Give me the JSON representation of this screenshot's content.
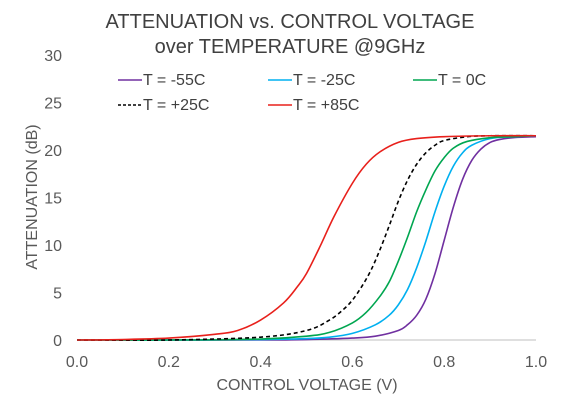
{
  "chart_data": {
    "type": "line",
    "title_line1": "ATTENUATION vs. CONTROL VOLTAGE",
    "title_line2": "over TEMPERATURE @9GHz",
    "xlabel": "CONTROL VOLTAGE (V)",
    "ylabel": "ATTENUATION (dB)",
    "xlim": [
      0,
      1.0
    ],
    "ylim": [
      0,
      30
    ],
    "x_ticks": [
      "0.0",
      "0.2",
      "0.4",
      "0.6",
      "0.8",
      "1.0"
    ],
    "y_ticks": [
      "0",
      "5",
      "10",
      "15",
      "20",
      "25",
      "30"
    ],
    "grid": false,
    "legend_position": "top",
    "series": [
      {
        "name": "T = -55C",
        "color": "#7030A0",
        "dash": "solid",
        "x": [
          0.0,
          0.2,
          0.4,
          0.5,
          0.6,
          0.65,
          0.7,
          0.72,
          0.74,
          0.76,
          0.78,
          0.8,
          0.82,
          0.84,
          0.86,
          0.88,
          0.9,
          0.92,
          0.95,
          1.0
        ],
        "y": [
          0.0,
          0.0,
          0.0,
          0.05,
          0.2,
          0.4,
          1.0,
          1.6,
          2.6,
          4.3,
          7.0,
          10.5,
          14.0,
          16.9,
          18.9,
          20.1,
          20.8,
          21.1,
          21.3,
          21.4
        ]
      },
      {
        "name": "T = -25C",
        "color": "#00B0F0",
        "dash": "solid",
        "x": [
          0.0,
          0.2,
          0.4,
          0.5,
          0.55,
          0.6,
          0.65,
          0.68,
          0.7,
          0.72,
          0.74,
          0.76,
          0.78,
          0.8,
          0.82,
          0.84,
          0.86,
          0.9,
          0.95,
          1.0
        ],
        "y": [
          0.0,
          0.0,
          0.05,
          0.15,
          0.3,
          0.7,
          1.6,
          2.6,
          3.7,
          5.3,
          7.6,
          10.4,
          13.5,
          16.2,
          18.3,
          19.7,
          20.5,
          21.2,
          21.4,
          21.5
        ]
      },
      {
        "name": "T = 0C",
        "color": "#00A650",
        "dash": "solid",
        "x": [
          0.0,
          0.2,
          0.4,
          0.5,
          0.55,
          0.6,
          0.63,
          0.66,
          0.68,
          0.7,
          0.72,
          0.74,
          0.76,
          0.78,
          0.8,
          0.82,
          0.85,
          0.9,
          0.95,
          1.0
        ],
        "y": [
          0.0,
          0.0,
          0.1,
          0.4,
          0.8,
          1.8,
          2.9,
          4.6,
          6.1,
          8.3,
          10.8,
          13.5,
          15.8,
          17.8,
          19.2,
          20.2,
          20.9,
          21.3,
          21.4,
          21.5
        ]
      },
      {
        "name": "T = +25C",
        "color": "#000000",
        "dash": "dashed",
        "x": [
          0.0,
          0.2,
          0.4,
          0.5,
          0.55,
          0.58,
          0.6,
          0.62,
          0.64,
          0.66,
          0.68,
          0.7,
          0.72,
          0.74,
          0.76,
          0.78,
          0.8,
          0.85,
          0.9,
          1.0
        ],
        "y": [
          0.0,
          0.0,
          0.3,
          1.0,
          2.1,
          3.2,
          4.2,
          5.6,
          7.3,
          9.5,
          12.0,
          14.6,
          16.8,
          18.5,
          19.7,
          20.5,
          21.0,
          21.4,
          21.5,
          21.5
        ]
      },
      {
        "name": "T = +85C",
        "color": "#E8201B",
        "dash": "solid",
        "x": [
          0.0,
          0.1,
          0.2,
          0.3,
          0.35,
          0.4,
          0.45,
          0.48,
          0.5,
          0.53,
          0.56,
          0.6,
          0.63,
          0.66,
          0.7,
          0.74,
          0.8,
          0.9,
          1.0
        ],
        "y": [
          0.0,
          0.05,
          0.2,
          0.6,
          1.0,
          2.1,
          3.9,
          5.6,
          7.0,
          9.9,
          13.0,
          16.5,
          18.5,
          19.8,
          20.8,
          21.2,
          21.4,
          21.5,
          21.5
        ]
      }
    ]
  }
}
